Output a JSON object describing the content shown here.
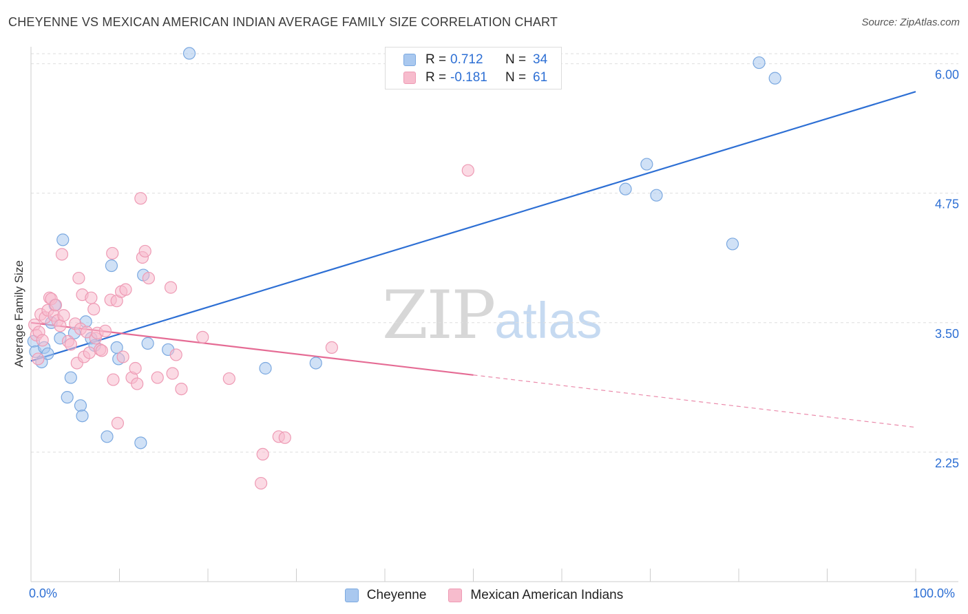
{
  "header": {
    "title": "CHEYENNE VS MEXICAN AMERICAN INDIAN AVERAGE FAMILY SIZE CORRELATION CHART",
    "source": "Source: ZipAtlas.com"
  },
  "watermark": {
    "zip": "ZIP",
    "atlas": "atlas"
  },
  "legend": {
    "rows": [
      {
        "r_label": "R =",
        "r_value": "0.712",
        "n_label": "N =",
        "n_value": "34",
        "color": "#a9c8ef",
        "border": "#7aa8e0"
      },
      {
        "r_label": "R =",
        "r_value": "-0.181",
        "n_label": "N =",
        "n_value": "61",
        "color": "#f7bccd",
        "border": "#ee9ab4"
      }
    ]
  },
  "bottom_legend": {
    "items": [
      {
        "label": "Cheyenne",
        "color": "#a9c8ef",
        "border": "#7aa8e0"
      },
      {
        "label": "Mexican American Indians",
        "color": "#f7bccd",
        "border": "#ee9ab4"
      }
    ]
  },
  "axes": {
    "x_min_label": "0.0%",
    "x_max_label": "100.0%"
  },
  "chart_data": {
    "type": "scatter",
    "title": "CHEYENNE VS MEXICAN AMERICAN INDIAN AVERAGE FAMILY SIZE CORRELATION CHART",
    "xlabel": "",
    "ylabel": "Average Family Size",
    "xlim": [
      0,
      100
    ],
    "ylim": [
      1.0,
      6.15
    ],
    "y_ticks": [
      2.25,
      3.5,
      4.75,
      6.0
    ],
    "y_tick_labels": [
      "2.25",
      "3.50",
      "4.75",
      "6.00"
    ],
    "grid": true,
    "legend_position": "top-center",
    "series": [
      {
        "name": "Cheyenne",
        "color": "#a9c8ef",
        "stroke": "#7aa8e0",
        "points": [
          [
            0.3,
            3.32
          ],
          [
            0.5,
            3.22
          ],
          [
            1.2,
            3.12
          ],
          [
            1.5,
            3.26
          ],
          [
            1.9,
            3.2
          ],
          [
            2.3,
            3.5
          ],
          [
            2.7,
            3.67
          ],
          [
            3.3,
            3.35
          ],
          [
            3.6,
            4.3
          ],
          [
            4.1,
            2.78
          ],
          [
            4.5,
            2.97
          ],
          [
            4.9,
            3.4
          ],
          [
            5.6,
            2.7
          ],
          [
            5.8,
            2.6
          ],
          [
            6.2,
            3.51
          ],
          [
            6.8,
            3.35
          ],
          [
            7.2,
            3.28
          ],
          [
            8.6,
            2.4
          ],
          [
            9.1,
            4.05
          ],
          [
            9.7,
            3.26
          ],
          [
            9.9,
            3.15
          ],
          [
            12.4,
            2.34
          ],
          [
            12.7,
            3.96
          ],
          [
            13.2,
            3.3
          ],
          [
            15.5,
            3.24
          ],
          [
            17.9,
            6.1
          ],
          [
            26.5,
            3.06
          ],
          [
            32.2,
            3.11
          ],
          [
            67.2,
            4.79
          ],
          [
            69.6,
            5.03
          ],
          [
            70.7,
            4.73
          ],
          [
            79.3,
            4.26
          ],
          [
            82.3,
            6.01
          ],
          [
            84.1,
            5.86
          ]
        ],
        "trend": {
          "x": [
            0,
            100
          ],
          "y": [
            3.13,
            5.73
          ],
          "dashed_from": null
        }
      },
      {
        "name": "Mexican American Indians",
        "color": "#f7bccd",
        "stroke": "#ee9ab4",
        "points": [
          [
            0.4,
            3.48
          ],
          [
            0.6,
            3.38
          ],
          [
            0.8,
            3.15
          ],
          [
            1.1,
            3.58
          ],
          [
            1.6,
            3.55
          ],
          [
            1.9,
            3.62
          ],
          [
            2.1,
            3.74
          ],
          [
            2.3,
            3.73
          ],
          [
            2.6,
            3.57
          ],
          [
            2.8,
            3.67
          ],
          [
            3.0,
            3.52
          ],
          [
            3.3,
            3.47
          ],
          [
            3.5,
            4.16
          ],
          [
            3.7,
            3.57
          ],
          [
            4.2,
            3.32
          ],
          [
            4.5,
            3.29
          ],
          [
            5.0,
            3.49
          ],
          [
            5.2,
            3.11
          ],
          [
            5.4,
            3.93
          ],
          [
            5.6,
            3.44
          ],
          [
            5.8,
            3.77
          ],
          [
            6.0,
            3.17
          ],
          [
            6.3,
            3.41
          ],
          [
            6.6,
            3.21
          ],
          [
            6.8,
            3.74
          ],
          [
            7.1,
            3.63
          ],
          [
            7.3,
            3.35
          ],
          [
            7.5,
            3.4
          ],
          [
            7.8,
            3.24
          ],
          [
            8.0,
            3.23
          ],
          [
            8.4,
            3.42
          ],
          [
            9.0,
            3.72
          ],
          [
            9.2,
            4.17
          ],
          [
            9.3,
            2.95
          ],
          [
            9.7,
            3.71
          ],
          [
            9.8,
            2.53
          ],
          [
            10.2,
            3.8
          ],
          [
            10.4,
            3.17
          ],
          [
            10.7,
            3.82
          ],
          [
            11.4,
            2.97
          ],
          [
            11.8,
            3.06
          ],
          [
            12.0,
            2.91
          ],
          [
            12.4,
            4.7
          ],
          [
            12.6,
            4.13
          ],
          [
            12.9,
            4.19
          ],
          [
            13.3,
            3.93
          ],
          [
            14.3,
            2.97
          ],
          [
            15.8,
            3.84
          ],
          [
            16.0,
            3.01
          ],
          [
            16.4,
            3.19
          ],
          [
            17.0,
            2.86
          ],
          [
            19.4,
            3.36
          ],
          [
            22.4,
            2.96
          ],
          [
            26.2,
            2.23
          ],
          [
            26.0,
            1.95
          ],
          [
            28.0,
            2.4
          ],
          [
            28.7,
            2.39
          ],
          [
            34.0,
            3.26
          ],
          [
            49.4,
            4.97
          ],
          [
            0.9,
            3.41
          ],
          [
            1.3,
            3.33
          ]
        ],
        "trend": {
          "x": [
            0,
            100
          ],
          "y": [
            3.5,
            2.49
          ],
          "dashed_from": 50
        }
      }
    ]
  }
}
